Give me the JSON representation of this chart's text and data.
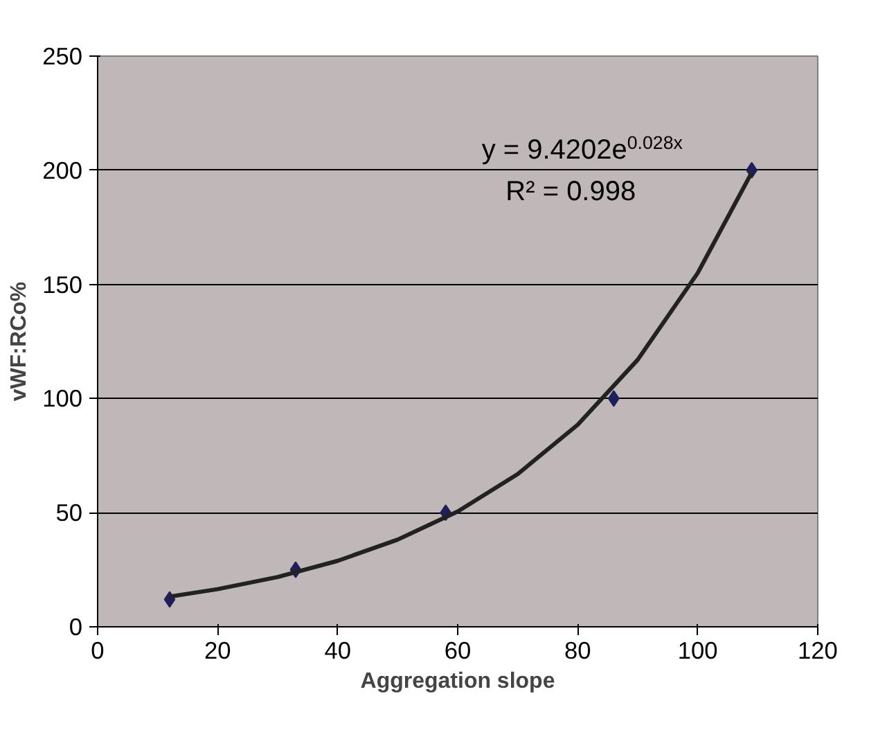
{
  "chart_data": {
    "type": "scatter",
    "xlabel": "Aggregation slope",
    "ylabel": "vWF:RCo%",
    "xlim": [
      0,
      120
    ],
    "xticks": [
      0,
      20,
      40,
      60,
      80,
      100,
      120
    ],
    "ylim": [
      0,
      250
    ],
    "yticks": [
      0,
      50,
      100,
      150,
      200,
      250
    ],
    "grid": "y",
    "annotations": [
      "y = 9.4202e$^{0.028x}$",
      "R² = 0.998"
    ],
    "series": [
      {
        "marker": "diamond",
        "color": "#1f1f5c",
        "x": [
          12,
          33,
          58,
          86,
          109
        ],
        "values": [
          12,
          25,
          50,
          100,
          200
        ]
      },
      {
        "type": "line",
        "color": "#222222",
        "line_style": "solid",
        "x": [
          12,
          20,
          30,
          40,
          50,
          60,
          70,
          80,
          90,
          100,
          109
        ],
        "values": [
          13.2,
          16.5,
          21.8,
          28.9,
          38.2,
          50.5,
          66.9,
          88.5,
          117,
          155,
          199
        ]
      }
    ]
  }
}
